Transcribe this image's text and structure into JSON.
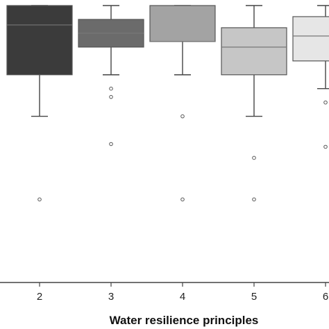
{
  "chart_data": {
    "type": "box",
    "xlabel": "Water resilience principles",
    "categories": [
      "2",
      "3",
      "4",
      "5",
      "6"
    ],
    "ylim": [
      0,
      10
    ],
    "series": [
      {
        "category": "2",
        "whisker_low": 6.0,
        "q1": 7.5,
        "median": 9.3,
        "q3": 10.0,
        "whisker_high": 10.0,
        "outliers": [
          3.0
        ],
        "fill": "#3b3b3b"
      },
      {
        "category": "3",
        "whisker_low": 7.5,
        "q1": 8.5,
        "median": 9.0,
        "q3": 9.5,
        "whisker_high": 10.0,
        "outliers": [
          7.0,
          6.7,
          5.0
        ],
        "fill": "#6b6b6b"
      },
      {
        "category": "4",
        "whisker_low": 7.5,
        "q1": 8.7,
        "median": 8.7,
        "q3": 10.0,
        "whisker_high": 10.0,
        "outliers": [
          6.0,
          3.0
        ],
        "fill": "#a3a3a3"
      },
      {
        "category": "5",
        "whisker_low": 6.0,
        "q1": 7.5,
        "median": 8.5,
        "q3": 9.2,
        "whisker_high": 10.0,
        "outliers": [
          4.5,
          3.0
        ],
        "fill": "#c6c6c6"
      },
      {
        "category": "6",
        "whisker_low": 7.0,
        "q1": 8.0,
        "median": 8.9,
        "q3": 9.6,
        "whisker_high": 10.0,
        "outliers": [
          6.5,
          4.9
        ],
        "fill": "#e6e6e6"
      }
    ]
  }
}
